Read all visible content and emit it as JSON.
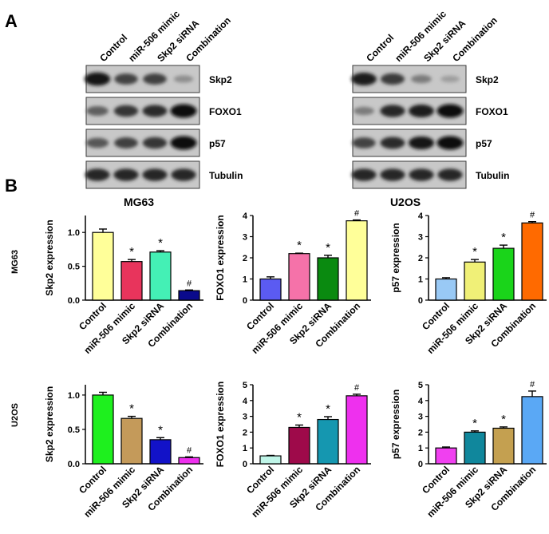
{
  "panel_labels": {
    "a": "A",
    "b": "B"
  },
  "blots": [
    {
      "cell_line": "MG63",
      "lanes": [
        "Control",
        "miR-506 mimic",
        "Skp2 siRNA",
        "Combination"
      ],
      "proteins": [
        "Skp2",
        "FOXO1",
        "p57",
        "Tubulin"
      ],
      "intensity": [
        [
          0.95,
          0.7,
          0.72,
          0.3
        ],
        [
          0.55,
          0.78,
          0.82,
          1.0
        ],
        [
          0.6,
          0.72,
          0.78,
          1.0
        ],
        [
          0.85,
          0.85,
          0.85,
          0.85
        ]
      ]
    },
    {
      "cell_line": "U2OS",
      "lanes": [
        "Control",
        "miR-506 mimic",
        "Skp2 siRNA",
        "Combination"
      ],
      "proteins": [
        "Skp2",
        "FOXO1",
        "p57",
        "Tubulin"
      ],
      "intensity": [
        [
          0.9,
          0.75,
          0.4,
          0.22
        ],
        [
          0.4,
          0.85,
          0.9,
          1.0
        ],
        [
          0.7,
          0.82,
          0.92,
          1.0
        ],
        [
          0.85,
          0.85,
          0.85,
          0.85
        ]
      ]
    }
  ],
  "row_labels": [
    "MG63",
    "U2OS"
  ],
  "chart_data": [
    {
      "type": "bar",
      "row": "MG63",
      "ylabel": "Skp2  expression",
      "categories": [
        "Control",
        "miR-506 mimic",
        "Skp2 siRNA",
        "Combination"
      ],
      "values": [
        1.0,
        0.57,
        0.71,
        0.14
      ],
      "errors": [
        0.05,
        0.03,
        0.02,
        0.01
      ],
      "ylim": [
        0,
        1.25
      ],
      "yticks": [
        0.0,
        0.5,
        1.0
      ],
      "tick_labels": [
        "0.0",
        "0.5",
        "1.0"
      ],
      "significance": [
        "",
        "*",
        "*",
        "#"
      ],
      "colors": [
        "#ffff99",
        "#e8345c",
        "#44f0b5",
        "#0a0a8c"
      ]
    },
    {
      "type": "bar",
      "row": "MG63",
      "ylabel": "FOXO1  expression",
      "categories": [
        "Control",
        "miR-506 mimic",
        "Skp2 siRNA",
        "Combination"
      ],
      "values": [
        1.0,
        2.2,
        2.0,
        3.75
      ],
      "errors": [
        0.1,
        0.02,
        0.12,
        0.04
      ],
      "ylim": [
        0,
        4
      ],
      "yticks": [
        0,
        1,
        2,
        3,
        4
      ],
      "tick_labels": [
        "0",
        "1",
        "2",
        "3",
        "4"
      ],
      "significance": [
        "",
        "*",
        "*",
        "#"
      ],
      "colors": [
        "#5b5bf2",
        "#f572a9",
        "#0a8a10",
        "#ffff99"
      ]
    },
    {
      "type": "bar",
      "row": "MG63",
      "ylabel": "p57  expression",
      "categories": [
        "Control",
        "miR-506 mimic",
        "Skp2 siRNA",
        "Combination"
      ],
      "values": [
        1.0,
        1.8,
        2.45,
        3.65
      ],
      "errors": [
        0.06,
        0.12,
        0.15,
        0.06
      ],
      "ylim": [
        0,
        4
      ],
      "yticks": [
        0,
        1,
        2,
        3,
        4
      ],
      "tick_labels": [
        "0",
        "1",
        "2",
        "3",
        "4"
      ],
      "significance": [
        "",
        "*",
        "*",
        "#"
      ],
      "colors": [
        "#99c9f5",
        "#f0f077",
        "#1ad41a",
        "#ff6a00"
      ]
    },
    {
      "type": "bar",
      "row": "U2OS",
      "ylabel": "Skp2  expression",
      "categories": [
        "Control",
        "miR-506 mimic",
        "Skp2 siRNA",
        "Combination"
      ],
      "values": [
        1.0,
        0.66,
        0.35,
        0.09
      ],
      "errors": [
        0.04,
        0.03,
        0.03,
        0.01
      ],
      "ylim": [
        0,
        1.15
      ],
      "yticks": [
        0.0,
        0.5,
        1.0
      ],
      "tick_labels": [
        "0.0",
        "0.5",
        "1.0"
      ],
      "significance": [
        "",
        "*",
        "*",
        "#"
      ],
      "colors": [
        "#1ef01e",
        "#c49a5a",
        "#1212c8",
        "#ee30ee"
      ]
    },
    {
      "type": "bar",
      "row": "U2OS",
      "ylabel": "FOXO1  expression",
      "categories": [
        "Control",
        "miR-506 mimic",
        "Skp2 siRNA",
        "Combination"
      ],
      "values": [
        0.5,
        2.3,
        2.8,
        4.3
      ],
      "errors": [
        0.03,
        0.15,
        0.18,
        0.1
      ],
      "ylim": [
        0,
        5
      ],
      "yticks": [
        0,
        1,
        2,
        3,
        4,
        5
      ],
      "tick_labels": [
        "0",
        "1",
        "2",
        "3",
        "4",
        "5"
      ],
      "significance": [
        "",
        "*",
        "*",
        "#"
      ],
      "colors": [
        "#bff5e8",
        "#9e0a4a",
        "#1597b0",
        "#ee30ee"
      ]
    },
    {
      "type": "bar",
      "row": "U2OS",
      "ylabel": "p57  expression",
      "categories": [
        "Control",
        "miR-506 mimic",
        "Skp2 siRNA",
        "Combination"
      ],
      "values": [
        1.0,
        2.0,
        2.25,
        4.25
      ],
      "errors": [
        0.06,
        0.08,
        0.08,
        0.35
      ],
      "ylim": [
        0,
        5
      ],
      "yticks": [
        0,
        1,
        2,
        3,
        4,
        5
      ],
      "tick_labels": [
        "0",
        "1",
        "2",
        "3",
        "4",
        "5"
      ],
      "significance": [
        "",
        "*",
        "*",
        "#"
      ],
      "colors": [
        "#f040f0",
        "#10879c",
        "#c4a050",
        "#5aa8f5"
      ]
    }
  ]
}
